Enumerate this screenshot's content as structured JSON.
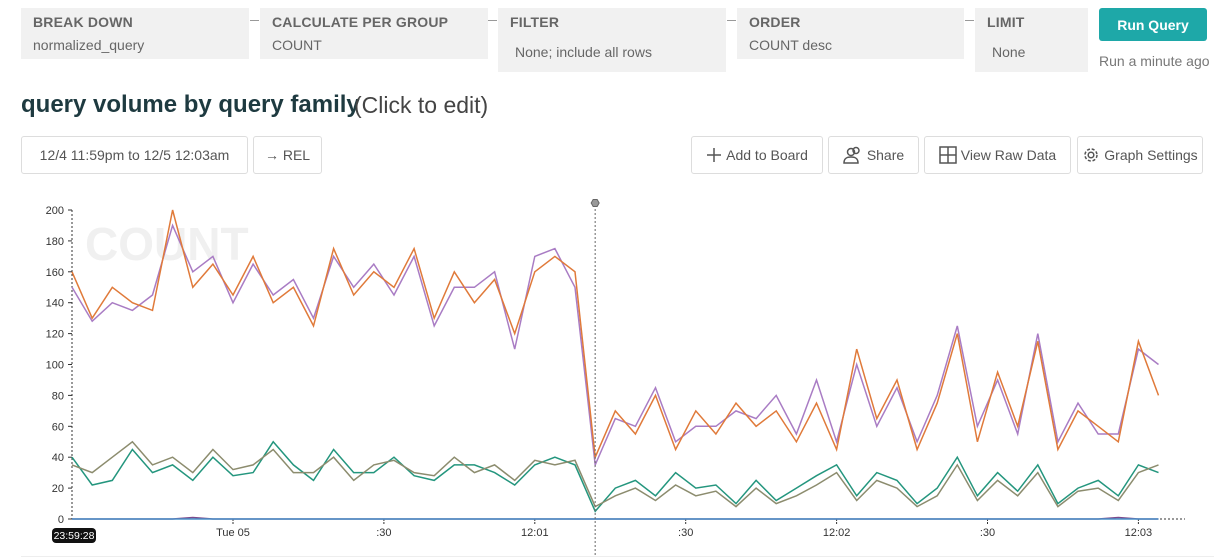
{
  "query": {
    "breakdown": {
      "label": "BREAK DOWN",
      "value": "normalized_query"
    },
    "calculate": {
      "label": "CALCULATE PER GROUP",
      "value": "COUNT"
    },
    "filter": {
      "label": "FILTER",
      "value": "None; include all rows"
    },
    "order": {
      "label": "ORDER",
      "value": "COUNT desc"
    },
    "limit": {
      "label": "LIMIT",
      "value": "None"
    },
    "run_label": "Run Query",
    "run_status": "Run a minute ago"
  },
  "header": {
    "title": "query volume by query family",
    "edit_hint": "(Click to edit)"
  },
  "toolbar": {
    "time_range": "12/4 11:59pm to 12/5 12:03am",
    "rel": "→ REL",
    "add_to_board": "Add to Board",
    "share": "Share",
    "view_raw": "View Raw Data",
    "graph_settings": "Graph Settings"
  },
  "chart_data": {
    "type": "line",
    "watermark": "COUNT",
    "cursor_label": "23:59:28",
    "x_unit": "seconds relative to 12/5 00:00:00",
    "x_start": -32,
    "x_step": 4,
    "x_ticks": [
      {
        "t": 0,
        "label": "Tue 05"
      },
      {
        "t": 30,
        "label": ":30"
      },
      {
        "t": 60,
        "label": "12:01"
      },
      {
        "t": 90,
        "label": ":30"
      },
      {
        "t": 120,
        "label": "12:02"
      },
      {
        "t": 150,
        "label": ":30"
      },
      {
        "t": 180,
        "label": "12:03"
      }
    ],
    "y_ticks": [
      0,
      20,
      40,
      60,
      80,
      100,
      120,
      140,
      160,
      180,
      200
    ],
    "ylim": [
      0,
      200
    ],
    "marker_t": 72,
    "series": [
      {
        "color": "#a97cc4",
        "values": [
          150,
          128,
          140,
          135,
          145,
          190,
          160,
          170,
          140,
          165,
          145,
          155,
          130,
          170,
          150,
          165,
          145,
          170,
          125,
          150,
          150,
          160,
          110,
          170,
          175,
          150,
          35,
          65,
          60,
          85,
          50,
          60,
          60,
          70,
          65,
          80,
          55,
          90,
          50,
          100,
          60,
          85,
          50,
          80,
          125,
          60,
          90,
          55,
          120,
          50,
          75,
          55,
          55,
          110,
          100
        ]
      },
      {
        "color": "#e07a3a",
        "values": [
          160,
          130,
          150,
          140,
          135,
          200,
          150,
          165,
          145,
          170,
          140,
          150,
          125,
          175,
          145,
          160,
          150,
          175,
          130,
          160,
          140,
          155,
          120,
          160,
          170,
          160,
          40,
          70,
          55,
          80,
          45,
          70,
          55,
          75,
          60,
          70,
          50,
          75,
          45,
          110,
          65,
          90,
          45,
          75,
          120,
          50,
          95,
          60,
          115,
          45,
          70,
          60,
          50,
          115,
          80
        ]
      },
      {
        "color": "#24967e",
        "values": [
          40,
          22,
          25,
          45,
          30,
          35,
          25,
          40,
          28,
          30,
          50,
          35,
          25,
          45,
          30,
          30,
          40,
          28,
          25,
          35,
          35,
          30,
          22,
          35,
          40,
          35,
          5,
          20,
          25,
          15,
          30,
          20,
          22,
          10,
          25,
          12,
          20,
          28,
          35,
          15,
          30,
          25,
          10,
          20,
          40,
          15,
          30,
          18,
          35,
          10,
          20,
          25,
          15,
          35,
          30
        ]
      },
      {
        "color": "#8c8c6e",
        "values": [
          35,
          30,
          40,
          50,
          35,
          40,
          30,
          45,
          32,
          35,
          45,
          30,
          30,
          40,
          25,
          35,
          38,
          30,
          28,
          40,
          30,
          35,
          25,
          38,
          35,
          38,
          8,
          15,
          20,
          12,
          22,
          15,
          18,
          8,
          20,
          10,
          15,
          22,
          30,
          12,
          25,
          20,
          8,
          15,
          35,
          12,
          25,
          15,
          30,
          8,
          18,
          20,
          12,
          30,
          35
        ]
      },
      {
        "color": "#7b4a8c",
        "values": [
          0,
          0,
          0,
          0,
          0,
          0,
          1,
          0,
          0,
          0,
          0,
          0,
          0,
          0,
          0,
          0,
          0,
          0,
          0,
          0,
          0,
          0,
          0,
          0,
          0,
          0,
          0,
          0,
          0,
          0,
          0,
          0,
          0,
          0,
          0,
          0,
          0,
          0,
          0,
          0,
          0,
          0,
          0,
          0,
          0,
          0,
          0,
          0,
          0,
          0,
          0,
          0,
          1,
          0,
          0
        ]
      },
      {
        "color": "#4a90c8",
        "values": [
          0,
          0,
          0,
          0,
          0,
          0,
          0,
          0,
          0,
          0,
          0,
          0,
          0,
          0,
          0,
          0,
          0,
          0,
          0,
          0,
          0,
          0,
          0,
          0,
          0,
          0,
          0,
          0,
          0,
          0,
          0,
          0,
          0,
          0,
          0,
          0,
          0,
          0,
          0,
          0,
          0,
          0,
          0,
          0,
          0,
          0,
          0,
          0,
          0,
          0,
          0,
          0,
          0,
          0,
          0
        ]
      }
    ]
  }
}
